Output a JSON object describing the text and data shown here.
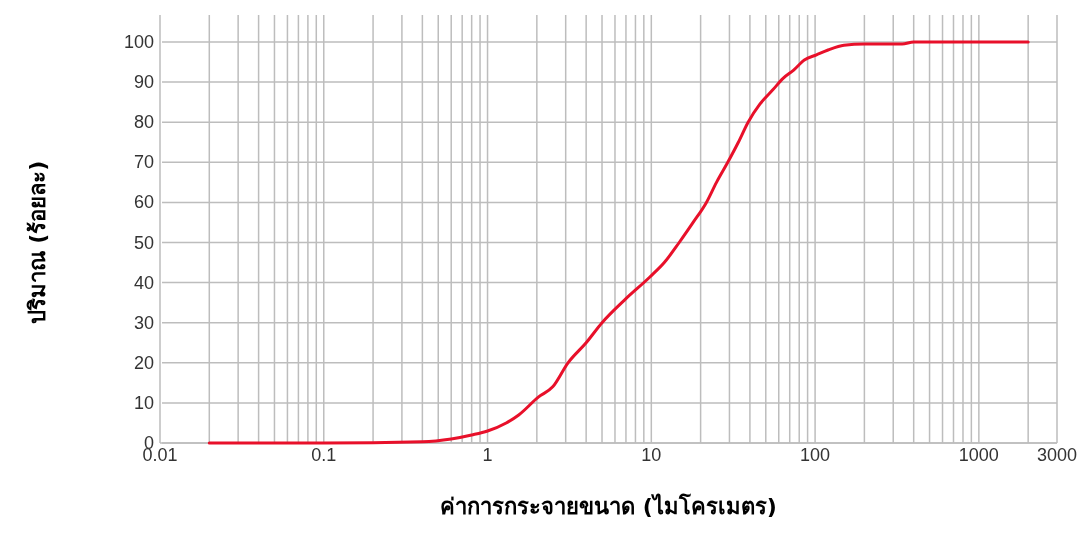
{
  "chart_data": {
    "type": "line",
    "xlabel": "ค่าการกระจายขนาด (ไมโครเมตร)",
    "ylabel": "ปริมาณ (ร้อยละ)",
    "log": "x",
    "grid": true,
    "line_style": "solid",
    "xlim": [
      0.01,
      3000
    ],
    "ylim": [
      0,
      100
    ],
    "xticks": [
      0.01,
      {
        "value": 0.02,
        "label": null
      },
      {
        "value": 0.03,
        "label": null
      },
      {
        "value": 0.04,
        "label": null
      },
      {
        "value": 0.05,
        "label": null
      },
      {
        "value": 0.06,
        "label": null
      },
      {
        "value": 0.07,
        "label": null
      },
      {
        "value": 0.08,
        "label": null
      },
      {
        "value": 0.09,
        "label": null
      },
      0.1,
      {
        "value": 0.2,
        "label": null
      },
      {
        "value": 0.3,
        "label": null
      },
      {
        "value": 0.4,
        "label": null
      },
      {
        "value": 0.5,
        "label": null
      },
      {
        "value": 0.6,
        "label": null
      },
      {
        "value": 0.7,
        "label": null
      },
      {
        "value": 0.8,
        "label": null
      },
      {
        "value": 0.9,
        "label": null
      },
      1,
      {
        "value": 2,
        "label": null
      },
      {
        "value": 3,
        "label": null
      },
      {
        "value": 4,
        "label": null
      },
      {
        "value": 5,
        "label": null
      },
      {
        "value": 6,
        "label": null
      },
      {
        "value": 7,
        "label": null
      },
      {
        "value": 8,
        "label": null
      },
      {
        "value": 9,
        "label": null
      },
      10,
      {
        "value": 20,
        "label": null
      },
      {
        "value": 30,
        "label": null
      },
      {
        "value": 40,
        "label": null
      },
      {
        "value": 50,
        "label": null
      },
      {
        "value": 60,
        "label": null
      },
      {
        "value": 70,
        "label": null
      },
      {
        "value": 80,
        "label": null
      },
      {
        "value": 90,
        "label": null
      },
      100,
      {
        "value": 200,
        "label": null
      },
      {
        "value": 300,
        "label": null
      },
      {
        "value": 400,
        "label": null
      },
      {
        "value": 500,
        "label": null
      },
      {
        "value": 600,
        "label": null
      },
      {
        "value": 700,
        "label": null
      },
      {
        "value": 800,
        "label": null
      },
      {
        "value": 900,
        "label": null
      },
      1000,
      {
        "value": 2000,
        "label": null
      },
      3000
    ],
    "yticks": [
      0,
      10,
      20,
      30,
      40,
      50,
      60,
      70,
      80,
      90,
      100
    ],
    "series": [
      {
        "color": "#e8102a",
        "x": [
          0.02,
          0.1,
          0.4,
          0.6,
          0.8,
          1,
          1.3,
          1.55,
          2.05,
          2.5,
          3.1,
          4,
          5,
          7,
          9.8,
          12,
          14.8,
          18,
          21.7,
          25,
          29.3,
          34,
          39,
          46,
          55,
          64,
          74,
          86,
          102,
          120,
          150,
          200,
          340,
          400,
          1000,
          2000
        ],
        "values": [
          0,
          0,
          0.3,
          1,
          2,
          3,
          5,
          7,
          11.5,
          14,
          20,
          25,
          30,
          36,
          41.4,
          45,
          50,
          55,
          60,
          65,
          70,
          75,
          80,
          84.5,
          88,
          91,
          93,
          95.5,
          96.8,
          98,
          99.2,
          99.5,
          99.5,
          100,
          100,
          100
        ]
      }
    ]
  }
}
